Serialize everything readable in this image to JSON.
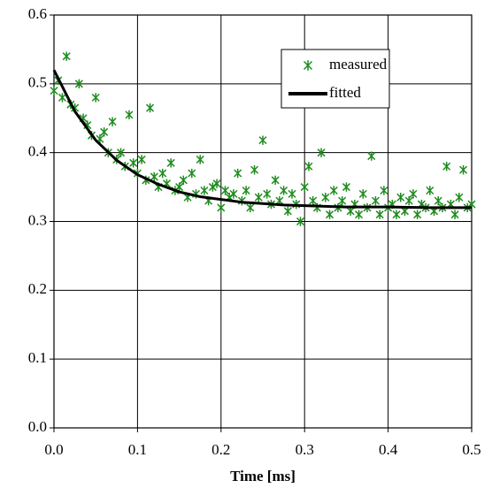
{
  "chart_data": {
    "type": "scatter",
    "xlabel": "Time [ms]",
    "xlim": [
      0,
      0.5
    ],
    "xticks": [
      {
        "value": 0,
        "label": "0.0"
      },
      0.1,
      0.2,
      0.3,
      0.4,
      0.5
    ],
    "ylim": [
      0,
      0.6
    ],
    "yticks": [
      {
        "value": 0,
        "label": "0.0"
      },
      0.1,
      0.2,
      0.3,
      0.4,
      0.5,
      0.6
    ],
    "grid": true,
    "legend": "upper right",
    "series": [
      {
        "name": "measured",
        "mode": "markers",
        "color": "#1e8c1e",
        "x": [
          0,
          0.005,
          0.01,
          0.015,
          0.02,
          0.025,
          0.03,
          0.035,
          0.04,
          0.045,
          0.05,
          0.055,
          0.06,
          0.065,
          0.07,
          0.075,
          0.08,
          0.085,
          0.09,
          0.095,
          0.1,
          0.105,
          0.11,
          0.115,
          0.12,
          0.125,
          0.13,
          0.135,
          0.14,
          0.145,
          0.15,
          0.155,
          0.16,
          0.165,
          0.17,
          0.175,
          0.18,
          0.185,
          0.19,
          0.195,
          0.2,
          0.205,
          0.21,
          0.215,
          0.22,
          0.225,
          0.23,
          0.235,
          0.24,
          0.245,
          0.25,
          0.255,
          0.26,
          0.265,
          0.27,
          0.275,
          0.28,
          0.285,
          0.29,
          0.295,
          0.3,
          0.305,
          0.31,
          0.315,
          0.32,
          0.325,
          0.33,
          0.335,
          0.34,
          0.345,
          0.35,
          0.355,
          0.36,
          0.365,
          0.37,
          0.375,
          0.38,
          0.385,
          0.39,
          0.395,
          0.4,
          0.405,
          0.41,
          0.415,
          0.42,
          0.425,
          0.43,
          0.435,
          0.44,
          0.445,
          0.45,
          0.455,
          0.46,
          0.465,
          0.47,
          0.475,
          0.48,
          0.485,
          0.49,
          0.495,
          0.5
        ],
        "values": [
          0.49,
          0.505,
          0.48,
          0.54,
          0.47,
          0.465,
          0.5,
          0.45,
          0.44,
          0.425,
          0.48,
          0.42,
          0.43,
          0.4,
          0.445,
          0.39,
          0.4,
          0.38,
          0.455,
          0.385,
          0.37,
          0.39,
          0.36,
          0.465,
          0.365,
          0.35,
          0.37,
          0.355,
          0.385,
          0.345,
          0.35,
          0.36,
          0.335,
          0.37,
          0.34,
          0.39,
          0.345,
          0.33,
          0.35,
          0.355,
          0.32,
          0.345,
          0.335,
          0.34,
          0.37,
          0.33,
          0.345,
          0.32,
          0.375,
          0.335,
          0.418,
          0.34,
          0.325,
          0.36,
          0.33,
          0.345,
          0.315,
          0.34,
          0.325,
          0.3,
          0.35,
          0.38,
          0.33,
          0.32,
          0.4,
          0.335,
          0.31,
          0.345,
          0.32,
          0.33,
          0.35,
          0.315,
          0.325,
          0.31,
          0.34,
          0.32,
          0.395,
          0.33,
          0.31,
          0.345,
          0.32,
          0.325,
          0.31,
          0.335,
          0.315,
          0.33,
          0.34,
          0.31,
          0.325,
          0.32,
          0.345,
          0.315,
          0.33,
          0.32,
          0.38,
          0.325,
          0.31,
          0.335,
          0.375,
          0.32,
          0.325
        ]
      },
      {
        "name": "fitted",
        "mode": "line",
        "color": "#000000",
        "x": [
          0,
          0.025,
          0.05,
          0.075,
          0.1,
          0.125,
          0.15,
          0.175,
          0.2,
          0.225,
          0.25,
          0.275,
          0.3,
          0.35,
          0.4,
          0.45,
          0.5
        ],
        "values": [
          0.52,
          0.46,
          0.418,
          0.389,
          0.368,
          0.354,
          0.343,
          0.336,
          0.332,
          0.328,
          0.326,
          0.324,
          0.323,
          0.321,
          0.321,
          0.32,
          0.32
        ]
      }
    ]
  }
}
